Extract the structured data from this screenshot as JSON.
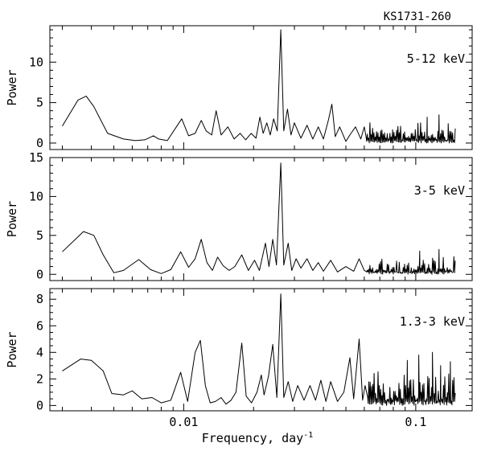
{
  "figure": {
    "title": "KS1731-260",
    "xlabel": "Frequency, day",
    "xlabel_sup": "-1"
  },
  "chart_data": [
    {
      "type": "line",
      "panel_label": "5-12 keV",
      "ylabel": "Power",
      "x_scale": "log",
      "xlim": [
        0.00265,
        0.175
      ],
      "ylim": [
        -0.8,
        14.5
      ],
      "yticks": [
        0,
        5,
        10
      ],
      "xticks": [
        0.01,
        0.1
      ],
      "xticklabels": [
        "0.01",
        "0.1"
      ],
      "show_xticklabels": false,
      "grid": false,
      "anchors": [
        {
          "x": 0.003,
          "y": 2.1
        },
        {
          "x": 0.0035,
          "y": 5.3
        },
        {
          "x": 0.0038,
          "y": 5.8
        },
        {
          "x": 0.0041,
          "y": 4.5
        },
        {
          "x": 0.0047,
          "y": 1.2
        },
        {
          "x": 0.0055,
          "y": 0.5
        },
        {
          "x": 0.0062,
          "y": 0.3
        },
        {
          "x": 0.0068,
          "y": 0.4
        },
        {
          "x": 0.0074,
          "y": 0.9
        },
        {
          "x": 0.0078,
          "y": 0.5
        },
        {
          "x": 0.0085,
          "y": 0.3
        },
        {
          "x": 0.0098,
          "y": 3.0
        },
        {
          "x": 0.0105,
          "y": 0.9
        },
        {
          "x": 0.0112,
          "y": 1.2
        },
        {
          "x": 0.0119,
          "y": 2.8
        },
        {
          "x": 0.0125,
          "y": 1.5
        },
        {
          "x": 0.0132,
          "y": 1.0
        },
        {
          "x": 0.0138,
          "y": 4.0
        },
        {
          "x": 0.0145,
          "y": 1.0
        },
        {
          "x": 0.0155,
          "y": 2.0
        },
        {
          "x": 0.0165,
          "y": 0.5
        },
        {
          "x": 0.0175,
          "y": 1.2
        },
        {
          "x": 0.0185,
          "y": 0.4
        },
        {
          "x": 0.0195,
          "y": 1.2
        },
        {
          "x": 0.0205,
          "y": 0.6
        },
        {
          "x": 0.0213,
          "y": 3.2
        },
        {
          "x": 0.022,
          "y": 1.2
        },
        {
          "x": 0.0228,
          "y": 2.5
        },
        {
          "x": 0.0236,
          "y": 1.0
        },
        {
          "x": 0.0244,
          "y": 3.0
        },
        {
          "x": 0.0253,
          "y": 1.5
        },
        {
          "x": 0.0262,
          "y": 14.0
        },
        {
          "x": 0.027,
          "y": 1.5
        },
        {
          "x": 0.028,
          "y": 4.2
        },
        {
          "x": 0.029,
          "y": 1.0
        },
        {
          "x": 0.03,
          "y": 2.5
        },
        {
          "x": 0.032,
          "y": 0.6
        },
        {
          "x": 0.034,
          "y": 2.2
        },
        {
          "x": 0.036,
          "y": 0.5
        },
        {
          "x": 0.038,
          "y": 2.0
        },
        {
          "x": 0.04,
          "y": 0.5
        },
        {
          "x": 0.042,
          "y": 2.8
        },
        {
          "x": 0.0435,
          "y": 4.8
        },
        {
          "x": 0.045,
          "y": 0.8
        },
        {
          "x": 0.047,
          "y": 2.0
        },
        {
          "x": 0.05,
          "y": 0.2
        },
        {
          "x": 0.052,
          "y": 1.0
        },
        {
          "x": 0.055,
          "y": 2.0
        },
        {
          "x": 0.058,
          "y": 0.5
        },
        {
          "x": 0.06,
          "y": 2.0
        }
      ],
      "noise": {
        "start": 0.061,
        "end": 0.148,
        "n": 135,
        "base": 0.3,
        "amp": 2.3,
        "seed": 7
      },
      "spikes": [
        {
          "x": 0.112,
          "y": 3.2
        },
        {
          "x": 0.126,
          "y": 3.5
        },
        {
          "x": 0.138,
          "y": 2.4
        }
      ]
    },
    {
      "type": "line",
      "panel_label": "3-5 keV",
      "ylabel": "Power",
      "x_scale": "log",
      "xlim": [
        0.00265,
        0.175
      ],
      "ylim": [
        -0.8,
        15
      ],
      "yticks": [
        0,
        5,
        10,
        15
      ],
      "xticks": [
        0.01,
        0.1
      ],
      "xticklabels": [
        "0.01",
        "0.1"
      ],
      "show_xticklabels": false,
      "grid": false,
      "anchors": [
        {
          "x": 0.003,
          "y": 2.9
        },
        {
          "x": 0.0037,
          "y": 5.5
        },
        {
          "x": 0.0041,
          "y": 5.0
        },
        {
          "x": 0.0045,
          "y": 2.5
        },
        {
          "x": 0.005,
          "y": 0.2
        },
        {
          "x": 0.0055,
          "y": 0.5
        },
        {
          "x": 0.0064,
          "y": 1.9
        },
        {
          "x": 0.0072,
          "y": 0.6
        },
        {
          "x": 0.008,
          "y": 0.1
        },
        {
          "x": 0.0088,
          "y": 0.6
        },
        {
          "x": 0.0097,
          "y": 2.9
        },
        {
          "x": 0.0105,
          "y": 0.9
        },
        {
          "x": 0.0112,
          "y": 2.0
        },
        {
          "x": 0.0119,
          "y": 4.5
        },
        {
          "x": 0.0126,
          "y": 1.5
        },
        {
          "x": 0.0133,
          "y": 0.5
        },
        {
          "x": 0.014,
          "y": 2.2
        },
        {
          "x": 0.0148,
          "y": 1.1
        },
        {
          "x": 0.0157,
          "y": 0.5
        },
        {
          "x": 0.0166,
          "y": 1.0
        },
        {
          "x": 0.0178,
          "y": 2.5
        },
        {
          "x": 0.019,
          "y": 0.5
        },
        {
          "x": 0.0202,
          "y": 1.8
        },
        {
          "x": 0.0212,
          "y": 0.5
        },
        {
          "x": 0.0225,
          "y": 4.0
        },
        {
          "x": 0.0233,
          "y": 1.0
        },
        {
          "x": 0.0242,
          "y": 4.5
        },
        {
          "x": 0.0251,
          "y": 1.2
        },
        {
          "x": 0.0262,
          "y": 14.3
        },
        {
          "x": 0.027,
          "y": 1.2
        },
        {
          "x": 0.0282,
          "y": 4.0
        },
        {
          "x": 0.0292,
          "y": 0.5
        },
        {
          "x": 0.0305,
          "y": 2.0
        },
        {
          "x": 0.032,
          "y": 0.8
        },
        {
          "x": 0.034,
          "y": 2.0
        },
        {
          "x": 0.036,
          "y": 0.5
        },
        {
          "x": 0.038,
          "y": 1.5
        },
        {
          "x": 0.04,
          "y": 0.4
        },
        {
          "x": 0.043,
          "y": 1.8
        },
        {
          "x": 0.046,
          "y": 0.3
        },
        {
          "x": 0.05,
          "y": 1.0
        },
        {
          "x": 0.054,
          "y": 0.4
        },
        {
          "x": 0.057,
          "y": 2.0
        },
        {
          "x": 0.06,
          "y": 0.5
        }
      ],
      "noise": {
        "start": 0.061,
        "end": 0.148,
        "n": 135,
        "base": 0.2,
        "amp": 2.3,
        "seed": 19
      },
      "spikes": [
        {
          "x": 0.104,
          "y": 3.0
        },
        {
          "x": 0.126,
          "y": 3.2
        }
      ]
    },
    {
      "type": "line",
      "panel_label": "1.3-3 keV",
      "ylabel": "Power",
      "x_scale": "log",
      "xlim": [
        0.00265,
        0.175
      ],
      "ylim": [
        -0.4,
        8.8
      ],
      "yticks": [
        0,
        2,
        4,
        6,
        8
      ],
      "xticks": [
        0.01,
        0.1
      ],
      "xticklabels": [
        "0.01",
        "0.1"
      ],
      "show_xticklabels": true,
      "grid": false,
      "anchors": [
        {
          "x": 0.003,
          "y": 2.6
        },
        {
          "x": 0.0036,
          "y": 3.5
        },
        {
          "x": 0.004,
          "y": 3.4
        },
        {
          "x": 0.0045,
          "y": 2.6
        },
        {
          "x": 0.0049,
          "y": 0.9
        },
        {
          "x": 0.0055,
          "y": 0.8
        },
        {
          "x": 0.006,
          "y": 1.1
        },
        {
          "x": 0.0066,
          "y": 0.5
        },
        {
          "x": 0.0073,
          "y": 0.6
        },
        {
          "x": 0.008,
          "y": 0.2
        },
        {
          "x": 0.0088,
          "y": 0.4
        },
        {
          "x": 0.0097,
          "y": 2.5
        },
        {
          "x": 0.0104,
          "y": 0.3
        },
        {
          "x": 0.0112,
          "y": 4.0
        },
        {
          "x": 0.0118,
          "y": 4.9
        },
        {
          "x": 0.0124,
          "y": 1.5
        },
        {
          "x": 0.013,
          "y": 0.2
        },
        {
          "x": 0.0137,
          "y": 0.3
        },
        {
          "x": 0.0145,
          "y": 0.6
        },
        {
          "x": 0.0152,
          "y": 0.1
        },
        {
          "x": 0.016,
          "y": 0.4
        },
        {
          "x": 0.0168,
          "y": 1.0
        },
        {
          "x": 0.0178,
          "y": 4.7
        },
        {
          "x": 0.0186,
          "y": 0.7
        },
        {
          "x": 0.0196,
          "y": 0.2
        },
        {
          "x": 0.0207,
          "y": 1.0
        },
        {
          "x": 0.0216,
          "y": 2.3
        },
        {
          "x": 0.0222,
          "y": 0.8
        },
        {
          "x": 0.0232,
          "y": 2.2
        },
        {
          "x": 0.0242,
          "y": 4.6
        },
        {
          "x": 0.0252,
          "y": 0.6
        },
        {
          "x": 0.0262,
          "y": 8.4
        },
        {
          "x": 0.027,
          "y": 0.6
        },
        {
          "x": 0.0282,
          "y": 1.8
        },
        {
          "x": 0.0295,
          "y": 0.3
        },
        {
          "x": 0.031,
          "y": 1.5
        },
        {
          "x": 0.033,
          "y": 0.4
        },
        {
          "x": 0.035,
          "y": 1.5
        },
        {
          "x": 0.037,
          "y": 0.4
        },
        {
          "x": 0.039,
          "y": 1.9
        },
        {
          "x": 0.041,
          "y": 0.3
        },
        {
          "x": 0.043,
          "y": 1.8
        },
        {
          "x": 0.046,
          "y": 0.3
        },
        {
          "x": 0.049,
          "y": 1.0
        },
        {
          "x": 0.052,
          "y": 3.6
        },
        {
          "x": 0.054,
          "y": 0.5
        },
        {
          "x": 0.057,
          "y": 5.0
        },
        {
          "x": 0.059,
          "y": 0.4
        },
        {
          "x": 0.0605,
          "y": 1.5
        }
      ],
      "noise": {
        "start": 0.062,
        "end": 0.148,
        "n": 135,
        "base": 0.3,
        "amp": 2.8,
        "seed": 33
      },
      "spikes": [
        {
          "x": 0.092,
          "y": 3.4
        },
        {
          "x": 0.103,
          "y": 3.8
        },
        {
          "x": 0.118,
          "y": 4.0
        },
        {
          "x": 0.128,
          "y": 3.0
        },
        {
          "x": 0.141,
          "y": 3.3
        }
      ]
    }
  ]
}
